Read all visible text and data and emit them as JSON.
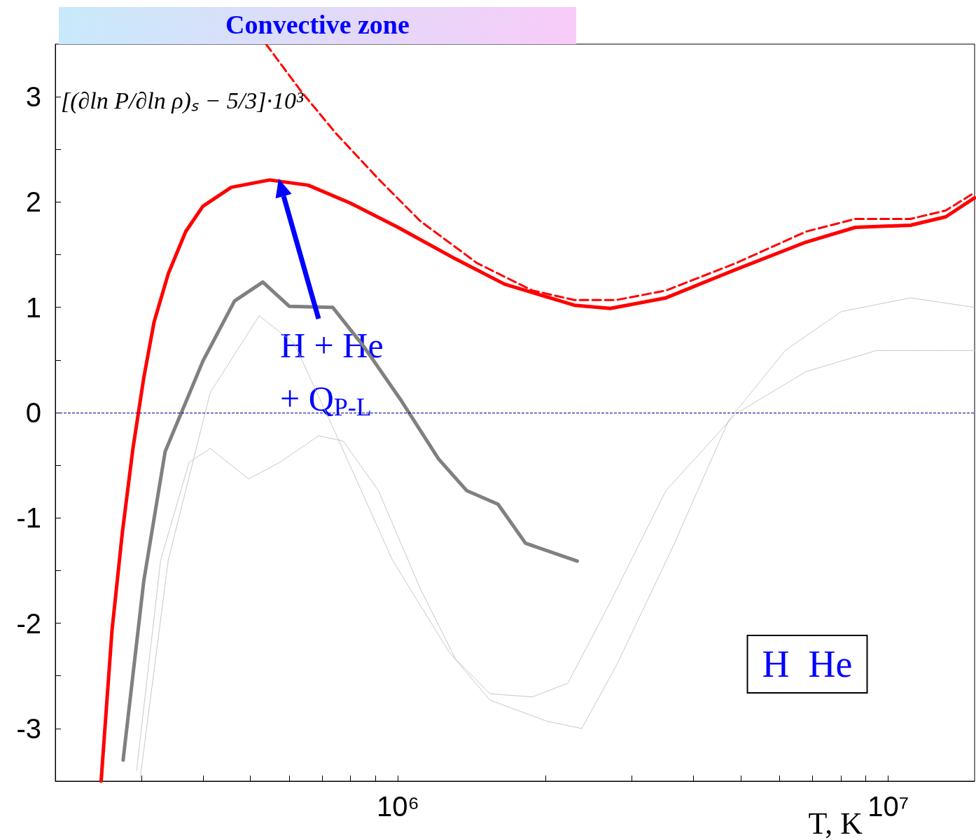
{
  "chart_data": {
    "type": "line",
    "xlabel": "T, K",
    "ylabel": "[(∂ln P/∂ln ρ)ₛ − 5/3]·10³",
    "log": "x",
    "grid": false,
    "marker": "none",
    "xlim": [
      200000,
      15000000
    ],
    "xticks": [
      {
        "value": 300000,
        "label": null
      },
      {
        "value": 400000,
        "label": null
      },
      {
        "value": 500000,
        "label": null
      },
      {
        "value": 600000,
        "label": null
      },
      {
        "value": 700000,
        "label": null
      },
      {
        "value": 800000,
        "label": null
      },
      {
        "value": 900000,
        "label": null
      },
      {
        "value": 1000000,
        "label": "10⁶"
      },
      {
        "value": 2000000,
        "label": null
      },
      {
        "value": 3000000,
        "label": null
      },
      {
        "value": 4000000,
        "label": null
      },
      {
        "value": 5000000,
        "label": null
      },
      {
        "value": 6000000,
        "label": null
      },
      {
        "value": 7000000,
        "label": null
      },
      {
        "value": 8000000,
        "label": null
      },
      {
        "value": 9000000,
        "label": null
      },
      {
        "value": 10000000,
        "label": "10⁷"
      }
    ],
    "ylim": [
      -3.5,
      3.5
    ],
    "yticks": [
      -3,
      {
        "value": -2.5,
        "label": null
      },
      -2,
      {
        "value": -1.5,
        "label": null
      },
      -1,
      {
        "value": -0.5,
        "label": null
      },
      0,
      {
        "value": 0.5,
        "label": null
      },
      1,
      {
        "value": 1.5,
        "label": null
      },
      2,
      {
        "value": 2.5,
        "label": null
      },
      3
    ],
    "ref_lines": [
      {
        "axis": "y",
        "value": 0,
        "color": "#00008b",
        "line_style": "dashed"
      }
    ],
    "annotations": [
      "Convective zone",
      "H + He\n+ Q$_{P-L}$",
      "H  He"
    ],
    "series": [
      {
        "color": "#c0c0c0",
        "line_style": "dotted",
        "x": [
          293000,
          328000,
          375000,
          414000,
          496000,
          575000,
          689000,
          773000,
          912000,
          1110000,
          1310000,
          1540000,
          1880000,
          2220000,
          2710000,
          3520000,
          4890000,
          6800000,
          9460000,
          15000000
        ],
        "values": [
          -3.4,
          -1.4,
          -0.47,
          -0.34,
          -0.63,
          -0.47,
          -0.22,
          -0.27,
          -0.74,
          -1.67,
          -2.34,
          -2.67,
          -2.7,
          -2.57,
          -1.8,
          -0.74,
          -0.01,
          0.39,
          0.59,
          0.59
        ]
      },
      {
        "color": "#c0c0c0",
        "line_style": "dotted",
        "x": [
          298000,
          340000,
          414000,
          521000,
          614000,
          748000,
          974000,
          1270000,
          1540000,
          2010000,
          2370000,
          2790000,
          3640000,
          4730000,
          6160000,
          8020000,
          11100000,
          15000000
        ],
        "values": [
          -3.47,
          -1.4,
          0.19,
          0.92,
          0.66,
          -0.21,
          -1.4,
          -2.27,
          -2.73,
          -2.93,
          -3.0,
          -2.4,
          -1.27,
          -0.07,
          0.59,
          0.96,
          1.09,
          1.0
        ]
      },
      {
        "color": "#808080",
        "line_style": "solid",
        "x": [
          275000,
          303000,
          335000,
          400000,
          464000,
          530000,
          600000,
          736000,
          854000,
          1010000,
          1210000,
          1380000,
          1600000,
          1820000,
          2320000
        ],
        "values": [
          -3.3,
          -1.6,
          -0.37,
          0.49,
          1.06,
          1.24,
          1.01,
          1.0,
          0.62,
          0.13,
          -0.44,
          -0.74,
          -0.87,
          -1.24,
          -1.41
        ]
      },
      {
        "color": "#ff0000",
        "line_style": "dashed",
        "x": [
          538000,
          635000,
          748000,
          912000,
          1110000,
          1450000,
          1880000,
          2290000,
          2790000,
          3520000,
          4890000,
          6800000,
          8570000,
          11100000,
          13100000,
          15000000
        ],
        "values": [
          3.5,
          3.05,
          2.65,
          2.22,
          1.82,
          1.42,
          1.16,
          1.07,
          1.07,
          1.16,
          1.42,
          1.72,
          1.84,
          1.84,
          1.92,
          2.09
        ]
      },
      {
        "color": "#ff0000",
        "line_style": "solid",
        "x": [
          248000,
          261000,
          274000,
          288000,
          303000,
          318000,
          340000,
          369000,
          400000,
          457000,
          547000,
          656000,
          800000,
          1000000,
          1310000,
          1650000,
          2290000,
          2710000,
          3520000,
          4890000,
          6800000,
          8570000,
          11100000,
          13100000,
          15000000
        ],
        "values": [
          -3.5,
          -2.07,
          -1.14,
          -0.34,
          0.33,
          0.86,
          1.32,
          1.72,
          1.96,
          2.14,
          2.21,
          2.16,
          1.99,
          1.76,
          1.46,
          1.22,
          1.02,
          0.99,
          1.09,
          1.36,
          1.62,
          1.76,
          1.78,
          1.86,
          2.04
        ]
      }
    ]
  }
}
